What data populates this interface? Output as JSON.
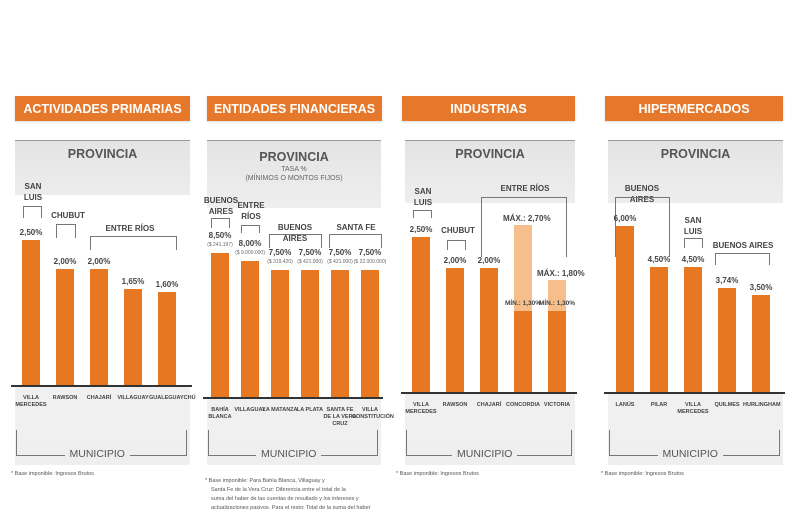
{
  "colors": {
    "bar": "#E87722",
    "bar_light": "#F5BE8A",
    "header": "#E5782A"
  },
  "chart_data": [
    {
      "type": "bar",
      "title": "ACTIVIDADES PRIMARIAS",
      "top_label": "PROVINCIA",
      "bottom_label": "MUNICIPIO",
      "categories": [
        "VILLA MERCEDES",
        "RAWSON",
        "CHAJARÍ",
        "VILLAGUAY",
        "GUALEGUAYCHÚ"
      ],
      "values": [
        2.5,
        2.0,
        2.0,
        1.65,
        1.6
      ],
      "value_labels": [
        "2,50%",
        "2,00%",
        "2,00%",
        "1,65%",
        "1,60%"
      ],
      "groups": [
        "SAN LUIS",
        "CHUBUT",
        "ENTRE RÍOS"
      ],
      "footnote": "* Base imponible: Ingresos Brutos"
    },
    {
      "type": "bar",
      "title": "ENTIDADES FINANCIERAS",
      "top_label": "PROVINCIA",
      "subtitle": "TASA %",
      "subtitle2": "(MÍNIMOS O MONTOS FIJOS)",
      "bottom_label": "MUNICIPIO",
      "categories": [
        "BAHÍA BLANCA",
        "VILLAGUAY",
        "LA MATANZA",
        "LA PLATA",
        "SANTA FE DE LA VERA CRUZ",
        "VILLA CONSTITUCIÓN"
      ],
      "values": [
        8.5,
        8.0,
        7.5,
        7.5,
        7.5,
        7.5
      ],
      "value_labels": [
        "8,50%",
        "8,00%",
        "7,50%",
        "7,50%",
        "7,50%",
        "7,50%"
      ],
      "amounts": [
        "($ 241.197)",
        "($ 9.000.000)",
        "($ 319.420)",
        "($ 421.000)",
        "($ 421.000)",
        "($ 22.000.000)"
      ],
      "groups": [
        "BUENOS AIRES",
        "ENTRE RÍOS",
        "BUENOS AIRES",
        "SANTA FE"
      ],
      "footnote": [
        "* Base imponible: Para Bahía Blanca, Villaguay y",
        "Santa Fe de la Vera Cruz: Diferencia entre el total de la",
        "suma del haber de las cuentas de resultado y los intereses y",
        "actualizaciones pasivos. Para el resto: Total de la suma del haber"
      ]
    },
    {
      "type": "bar",
      "title": "INDUSTRIAS",
      "top_label": "PROVINCIA",
      "bottom_label": "MUNICIPIO",
      "categories": [
        "VILLA MERCEDES",
        "RAWSON",
        "CHAJARÍ",
        "CONCORDIA",
        "VICTORIA"
      ],
      "values": [
        2.5,
        2.0,
        2.0,
        1.3,
        1.3
      ],
      "max_values": [
        null,
        null,
        null,
        2.7,
        1.8
      ],
      "value_labels": [
        "2,50%",
        "2,00%",
        "2,00%",
        "MÍN.: 1,30%",
        "MÍN.: 1,30%"
      ],
      "max_labels": [
        null,
        null,
        null,
        "MÁX.: 2,70%",
        "MÁX.: 1,80%"
      ],
      "groups": [
        "SAN LUIS",
        "CHUBUT",
        "ENTRE RÍOS"
      ],
      "footnote": "* Base imponible: Ingresos Brutos"
    },
    {
      "type": "bar",
      "title": "HIPERMERCADOS",
      "top_label": "PROVINCIA",
      "bottom_label": "MUNICIPIO",
      "categories": [
        "LANÚS",
        "PILAR",
        "VILLA MERCEDES",
        "QUILMES",
        "HURLINGHAM"
      ],
      "values": [
        6.0,
        4.5,
        4.5,
        3.74,
        3.5
      ],
      "value_labels": [
        "6,00%",
        "4,50%",
        "4,50%",
        "3,74%",
        "3,50%"
      ],
      "groups": [
        "BUENOS AIRES",
        "SAN LUIS",
        "BUENOS AIRES"
      ],
      "footnote": "* Base imponible: Ingresos Brutos"
    }
  ]
}
